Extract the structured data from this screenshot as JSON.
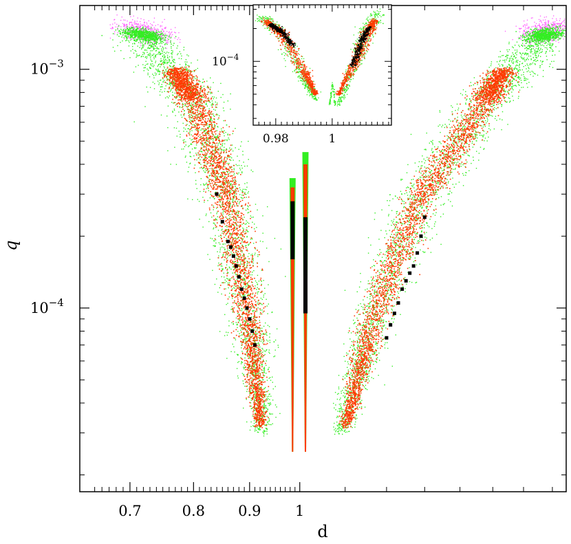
{
  "chart_data": [
    {
      "type": "scatter",
      "panel": "main",
      "title": "",
      "xlabel": "d",
      "ylabel": "q",
      "x_scale": "log",
      "y_scale": "log",
      "xlim": [
        0.63,
        1.75
      ],
      "ylim": [
        1.7e-05,
        0.00185
      ],
      "x_tick_labels": [
        "0.7",
        "0.8",
        "0.9",
        "1"
      ],
      "x_tick_values": [
        0.7,
        0.8,
        0.9,
        1.0
      ],
      "y_tick_labels": [
        {
          "base": "10",
          "exp": "−3",
          "value": 0.001
        },
        {
          "base": "10",
          "exp": "−4",
          "value": 0.0001
        }
      ],
      "grid": false,
      "colors": {
        "outer": "#ff55ff",
        "green": "#33ee22",
        "red": "#ff3a00",
        "black": "#000000"
      },
      "regions": [
        {
          "name": "close-branch",
          "d_center": [
            0.72,
            0.8,
            0.86,
            0.9,
            0.925
          ],
          "q_center": [
            0.00135,
            0.00075,
            0.00028,
            8.5e-05,
            3e-05
          ]
        },
        {
          "name": "wide-branch",
          "d_center": [
            1.66,
            1.48,
            1.28,
            1.16,
            1.09
          ],
          "q_center": [
            0.00135,
            0.00075,
            0.00028,
            8.5e-05,
            3e-05
          ]
        },
        {
          "name": "central-cusp-left",
          "d_range": [
            0.985,
            1.0
          ],
          "q_range": [
            2.5e-05,
            0.00035
          ]
        },
        {
          "name": "central-cusp-right",
          "d_range": [
            1.0,
            1.015
          ],
          "q_range": [
            2.5e-05,
            0.00045
          ]
        }
      ],
      "black_points": {
        "close": {
          "d": [
            0.84,
            0.85,
            0.86,
            0.865,
            0.87,
            0.875,
            0.88,
            0.885,
            0.89,
            0.895,
            0.9,
            0.905,
            0.91
          ],
          "q": [
            0.0003,
            0.00023,
            0.00019,
            0.00018,
            0.000165,
            0.00015,
            0.000135,
            0.00012,
            0.00011,
            0.0001,
            9e-05,
            8e-05,
            7e-05
          ]
        },
        "wide": {
          "d": [
            1.2,
            1.21,
            1.22,
            1.23,
            1.24,
            1.25,
            1.26,
            1.27,
            1.28,
            1.29,
            1.3
          ],
          "q": [
            7.5e-05,
            8.5e-05,
            9.5e-05,
            0.000105,
            0.00012,
            0.00013,
            0.00014,
            0.00015,
            0.00017,
            0.0002,
            0.00024
          ]
        }
      }
    },
    {
      "type": "scatter",
      "panel": "inset",
      "x_tick_labels": [
        "0.98",
        "1"
      ],
      "x_tick_values": [
        0.98,
        1.0
      ],
      "y_tick_labels": [
        {
          "base": "10",
          "exp": "−4",
          "value": 0.0001
        }
      ]
    }
  ]
}
